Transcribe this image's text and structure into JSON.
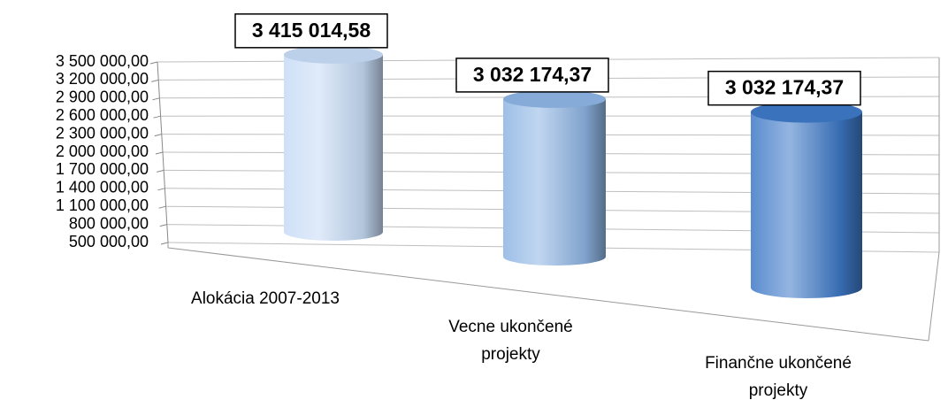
{
  "chart_data": {
    "type": "cylinder3d",
    "categories": [
      "Alokácia 2007-2013",
      "Vecne ukončené projekty",
      "Finančne ukončené projekty"
    ],
    "values": [
      3415014.58,
      3032174.37,
      3032174.37
    ],
    "value_labels": [
      "3 415 014,58",
      "3 032 174,37",
      "3 032 174,37"
    ],
    "colors": [
      "#c6dbf5",
      "#8db4e3",
      "#3d78c6"
    ],
    "ylim": [
      500000,
      3500000
    ],
    "yticks": [
      {
        "value": 500000,
        "label": "500 000,00"
      },
      {
        "value": 800000,
        "label": "800 000,00"
      },
      {
        "value": 1100000,
        "label": "1 100 000,00"
      },
      {
        "value": 1400000,
        "label": "1 400 000,00"
      },
      {
        "value": 1700000,
        "label": "1 700 000,00"
      },
      {
        "value": 2000000,
        "label": "2 000 000,00"
      },
      {
        "value": 2300000,
        "label": "2 300 000,00"
      },
      {
        "value": 2600000,
        "label": "2 600 000,00"
      },
      {
        "value": 2900000,
        "label": "2 900 000,00"
      },
      {
        "value": 3200000,
        "label": "3 200 000,00"
      },
      {
        "value": 3500000,
        "label": "3 500 000,00"
      }
    ],
    "grid": true
  }
}
